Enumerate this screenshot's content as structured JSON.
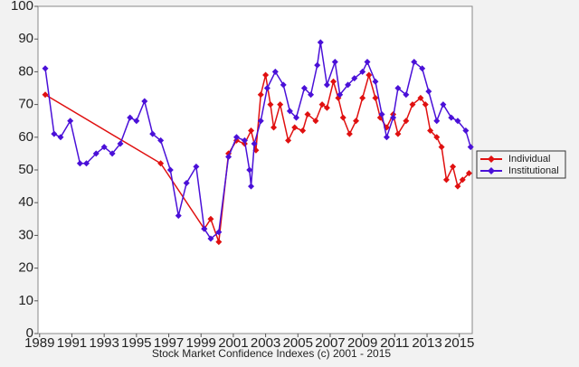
{
  "chart_data": {
    "type": "line",
    "xlabel": "Stock Market Confidence Indexes (c) 2001 - 2015",
    "xlim": [
      1988.9,
      2015.8
    ],
    "xticks": [
      1989,
      1991,
      1993,
      1995,
      1997,
      1999,
      2001,
      2003,
      2005,
      2007,
      2009,
      2011,
      2013,
      2015
    ],
    "ylim": [
      0,
      100
    ],
    "yticks": [
      0,
      10,
      20,
      30,
      40,
      50,
      60,
      70,
      80,
      90,
      100
    ],
    "legend": "right",
    "series": [
      {
        "name": "Individual",
        "color": "#e01010",
        "x": [
          1989.35,
          1996.5,
          1999.2,
          1999.6,
          2000.1,
          2000.7,
          2001.2,
          2001.7,
          2002.1,
          2002.4,
          2002.7,
          2003.0,
          2003.3,
          2003.5,
          2003.9,
          2004.4,
          2004.8,
          2005.3,
          2005.6,
          2006.1,
          2006.5,
          2006.8,
          2007.2,
          2007.5,
          2007.8,
          2008.2,
          2008.6,
          2009.0,
          2009.4,
          2009.8,
          2010.1,
          2010.5,
          2010.9,
          2011.2,
          2011.7,
          2012.1,
          2012.6,
          2012.9,
          2013.2,
          2013.6,
          2013.9,
          2014.2,
          2014.6,
          2014.9,
          2015.2,
          2015.6
        ],
        "values": [
          73,
          52,
          32,
          35,
          28,
          55,
          59,
          58,
          62,
          56,
          73,
          79,
          70,
          63,
          70,
          59,
          63,
          62,
          67,
          65,
          70,
          69,
          77,
          72,
          66,
          61,
          65,
          72,
          79,
          72,
          66,
          63,
          67,
          61,
          65,
          70,
          72,
          70,
          62,
          60,
          57,
          47,
          51,
          45,
          47,
          49
        ]
      },
      {
        "name": "Institutional",
        "color": "#4a10d8",
        "x": [
          1989.35,
          1989.9,
          1990.3,
          1990.9,
          1991.5,
          1991.9,
          1992.5,
          1993.0,
          1993.5,
          1994.0,
          1994.6,
          1995.0,
          1995.5,
          1996.0,
          1996.5,
          1997.1,
          1997.6,
          1998.1,
          1998.7,
          1999.2,
          1999.6,
          2000.1,
          2000.7,
          2001.2,
          2001.7,
          2002.0,
          2002.1,
          2002.3,
          2002.7,
          2003.1,
          2003.6,
          2004.1,
          2004.5,
          2004.9,
          2005.4,
          2005.8,
          2006.2,
          2006.4,
          2006.8,
          2007.3,
          2007.6,
          2008.1,
          2008.5,
          2009.0,
          2009.3,
          2009.8,
          2010.2,
          2010.5,
          2010.9,
          2011.2,
          2011.7,
          2012.2,
          2012.7,
          2013.1,
          2013.6,
          2014.0,
          2014.5,
          2014.9,
          2015.4,
          2015.7
        ],
        "values": [
          81,
          61,
          60,
          65,
          52,
          52,
          55,
          57,
          55,
          58,
          66,
          65,
          71,
          61,
          59,
          50,
          36,
          46,
          51,
          32,
          29,
          31,
          54,
          60,
          59,
          50,
          45,
          58,
          65,
          75,
          80,
          76,
          68,
          66,
          75,
          73,
          82,
          89,
          76,
          83,
          73,
          76,
          78,
          80,
          83,
          77,
          67,
          60,
          66,
          75,
          73,
          83,
          81,
          74,
          65,
          70,
          66,
          65,
          62,
          57
        ]
      }
    ]
  }
}
